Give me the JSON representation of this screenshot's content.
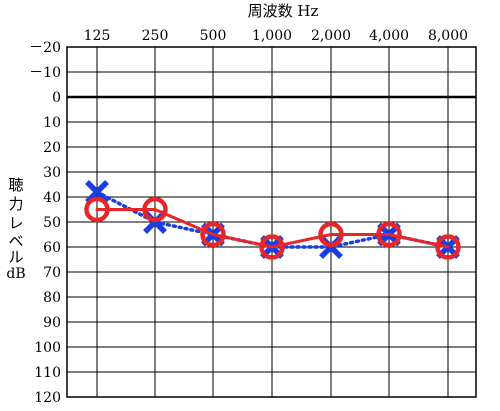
{
  "chart_data": {
    "type": "line",
    "title": "",
    "xlabel": "周波数 Hz",
    "ylabel_lines": [
      "聴",
      "力",
      "レ",
      "ベ",
      "ル",
      "dB"
    ],
    "x_categories": [
      "125",
      "250",
      "500",
      "1,000",
      "2,000",
      "4,000",
      "8,000"
    ],
    "y_ticks": [
      "－20",
      "－10",
      "0",
      "10",
      "20",
      "30",
      "40",
      "50",
      "60",
      "70",
      "80",
      "90",
      "100",
      "110",
      "120"
    ],
    "y_tick_values": [
      -20,
      -10,
      0,
      10,
      20,
      30,
      40,
      50,
      60,
      70,
      80,
      90,
      100,
      110,
      120
    ],
    "ylim": [
      -20,
      120
    ],
    "y_inverted": true,
    "reference_line_value": 0,
    "grid": true,
    "series": [
      {
        "marker": "circle",
        "line_style": "solid",
        "color": "#e8262a",
        "values": [
          45,
          45,
          55,
          60,
          55,
          55,
          60
        ]
      },
      {
        "marker": "cross",
        "line_style": "dotted",
        "color": "#1a3fe0",
        "values": [
          38,
          50,
          55,
          60,
          60,
          55,
          60
        ]
      }
    ]
  }
}
